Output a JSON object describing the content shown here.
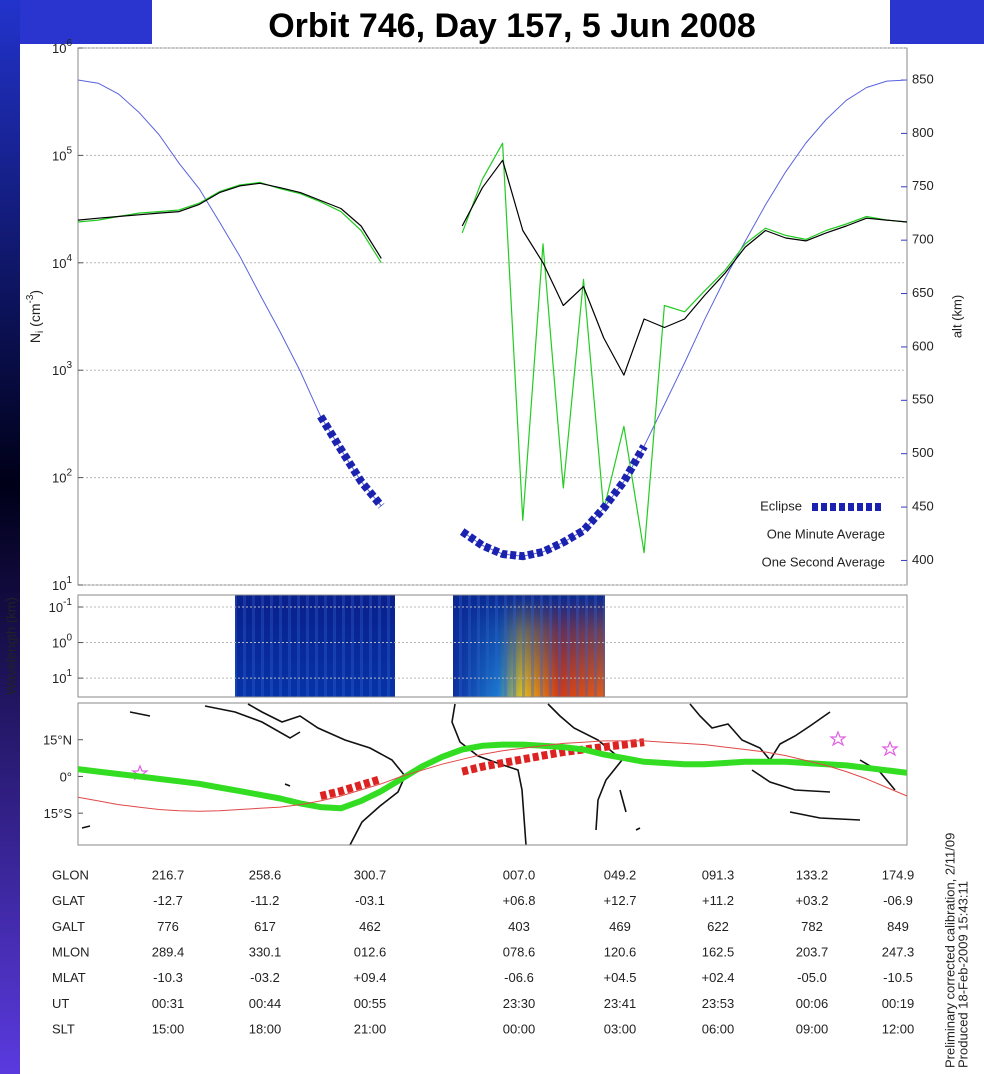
{
  "title": "Orbit 746,  Day 157,  5 Jun 2008",
  "chart_data": [
    {
      "type": "line",
      "ylabel": [
        "N",
        "i",
        " (cm",
        "-3",
        ")"
      ],
      "y2label": "alt (km)",
      "log_y": true,
      "grid": true,
      "legend": "lower right",
      "categories": [
        null,
        null,
        null,
        null,
        null,
        null,
        null,
        null,
        null,
        null,
        null,
        null,
        null,
        null,
        null,
        null,
        null,
        null,
        null,
        null,
        null,
        null,
        null,
        null,
        null,
        null,
        null,
        null,
        null,
        null,
        null,
        null,
        null,
        null,
        null,
        null,
        null,
        null,
        null,
        null,
        null,
        null
      ],
      "ylim": [
        10,
        1000000
      ],
      "yticks": [
        {
          "value": 10,
          "label": "10",
          "exponent": "1"
        },
        {
          "value": 100,
          "label": "10",
          "exponent": "2"
        },
        {
          "value": 1000,
          "label": "10",
          "exponent": "3"
        },
        {
          "value": 10000,
          "label": "10",
          "exponent": "4"
        },
        {
          "value": 100000,
          "label": "10",
          "exponent": "5"
        },
        {
          "value": 1000000,
          "label": "10",
          "exponent": "6"
        }
      ],
      "y2lim": [
        377,
        880
      ],
      "y2ticks": [
        400,
        450,
        500,
        550,
        600,
        650,
        700,
        750,
        800,
        850
      ],
      "series": [
        {
          "name": "Eclipse",
          "color": "#1b22b0",
          "style": "squares",
          "axis": "y2",
          "values": [
            null,
            null,
            null,
            null,
            null,
            null,
            null,
            null,
            null,
            null,
            null,
            null,
            535,
            504,
            474,
            451,
            null,
            null,
            null,
            427,
            414,
            406,
            404,
            408,
            417,
            428,
            449,
            474,
            507,
            null,
            null,
            null,
            null,
            null,
            null,
            null,
            null,
            null,
            null,
            null,
            null,
            null
          ]
        },
        {
          "name": "One Minute Average",
          "color": "#000000",
          "style": "line",
          "values": [
            25000,
            26000,
            27000,
            28000,
            29000,
            30000,
            35000,
            45000,
            52000,
            55000,
            50000,
            45000,
            38000,
            32000,
            22000,
            11000,
            null,
            null,
            null,
            22000,
            50000,
            90000,
            20000,
            10000,
            4000,
            6000,
            2000,
            900,
            3000,
            2500,
            3000,
            5000,
            8000,
            14000,
            20000,
            17000,
            16000,
            19000,
            22000,
            26000,
            25000,
            24000
          ]
        },
        {
          "name": "One Second Average",
          "color": "#22cc22",
          "style": "line",
          "values": [
            24000,
            25000,
            27000,
            29000,
            30000,
            31000,
            36000,
            46000,
            53000,
            56000,
            49000,
            44000,
            37000,
            30000,
            20000,
            10000,
            null,
            null,
            null,
            19000,
            60000,
            130000,
            40,
            15000,
            80,
            7000,
            50,
            300,
            20,
            4000,
            3500,
            5500,
            8500,
            15000,
            21000,
            18000,
            16500,
            20000,
            23000,
            27000,
            25000,
            24000
          ]
        },
        {
          "color": "#5a62dc",
          "style": "thin",
          "axis": "y2",
          "values": [
            850,
            847,
            837,
            820,
            799,
            772,
            748,
            717,
            685,
            649,
            614,
            577,
            535,
            504,
            474,
            451,
            null,
            null,
            null,
            427,
            414,
            406,
            404,
            408,
            417,
            428,
            449,
            474,
            507,
            546,
            585,
            626,
            664,
            699,
            733,
            764,
            791,
            813,
            831,
            843,
            849,
            850
          ]
        }
      ]
    },
    {
      "type": "spectrogram",
      "ylabel": "Wavelength (km)",
      "log_y": true,
      "y_reversed": true,
      "grid": true,
      "ylim": [
        0.046,
        34
      ],
      "yticks": [
        {
          "value": 0.1,
          "label": "10",
          "exponent": "-1"
        },
        {
          "value": 1,
          "label": "10",
          "exponent": "0"
        },
        {
          "value": 10,
          "label": "10",
          "exponent": "1"
        }
      ]
    },
    {
      "type": "line",
      "categories": [
        null,
        null,
        null,
        null,
        null,
        null,
        null,
        null,
        null,
        null,
        null,
        null,
        null,
        null,
        null,
        null,
        null,
        null,
        null,
        null,
        null,
        null,
        null,
        null,
        null,
        null,
        null,
        null,
        null,
        null,
        null,
        null,
        null,
        null,
        null,
        null,
        null,
        null,
        null,
        null,
        null,
        null
      ],
      "ylim": [
        -28,
        30
      ],
      "yticks": [
        {
          "value": 15,
          "label": "15°N"
        },
        {
          "value": 0,
          "label": "0°"
        },
        {
          "value": -15,
          "label": "15°S"
        }
      ],
      "series": [
        {
          "color": "#e04848",
          "style": "thin",
          "values": [
            -8.5,
            -10,
            -11.5,
            -12.5,
            -13.5,
            -14,
            -14.2,
            -14,
            -13.5,
            -13,
            -12.5,
            -11.5,
            -10,
            -8,
            -5.5,
            -3,
            0,
            2.5,
            5,
            7,
            9,
            10.5,
            11.5,
            12.5,
            13.5,
            14,
            14.5,
            14.5,
            14.5,
            14,
            13.5,
            13,
            12,
            11,
            10,
            8.5,
            6.5,
            4.5,
            2,
            -1,
            -4.5,
            -8
          ]
        },
        {
          "color": "#33dd22",
          "style": "thick",
          "values": [
            3,
            2,
            1,
            0,
            -1,
            -2,
            -3,
            -4.5,
            -6,
            -7.5,
            -9,
            -11,
            -12.5,
            -13,
            -10,
            -6,
            -1,
            4,
            8,
            11,
            12.5,
            13,
            13,
            12.5,
            12,
            11,
            9,
            7.5,
            6,
            5.5,
            5,
            5,
            5.5,
            6,
            6,
            6,
            5.5,
            5,
            4.5,
            3.5,
            2.5,
            1.5
          ]
        },
        {
          "color": "#dd2222",
          "style": "squares",
          "values": [
            null,
            null,
            null,
            null,
            null,
            null,
            null,
            null,
            null,
            null,
            null,
            null,
            -8,
            -6,
            -3.5,
            -1,
            null,
            null,
            null,
            2,
            4,
            5.5,
            7,
            8.5,
            10,
            11,
            12,
            13,
            14,
            null,
            null,
            null,
            null,
            null,
            null,
            null,
            null,
            null,
            null,
            null,
            null,
            null
          ]
        }
      ]
    }
  ],
  "table": {
    "rows": [
      {
        "label": "GLON",
        "values": [
          "216.7",
          "258.6",
          "300.7",
          "007.0",
          "049.2",
          "091.3",
          "133.2",
          "174.9"
        ]
      },
      {
        "label": "GLAT",
        "values": [
          "-12.7",
          "-11.2",
          "-03.1",
          "+06.8",
          "+12.7",
          "+11.2",
          "+03.2",
          "-06.9"
        ]
      },
      {
        "label": "GALT",
        "values": [
          "776",
          "617",
          "462",
          "403",
          "469",
          "622",
          "782",
          "849"
        ]
      },
      {
        "label": "MLON",
        "values": [
          "289.4",
          "330.1",
          "012.6",
          "078.6",
          "120.6",
          "162.5",
          "203.7",
          "247.3"
        ]
      },
      {
        "label": "MLAT",
        "values": [
          "-10.3",
          "-03.2",
          "+09.4",
          "-06.6",
          "+04.5",
          "+02.4",
          "-05.0",
          "-10.5"
        ]
      },
      {
        "label": "UT",
        "values": [
          "00:31",
          "00:44",
          "00:55",
          "23:30",
          "23:41",
          "23:53",
          "00:06",
          "00:19"
        ]
      },
      {
        "label": "SLT",
        "values": [
          "15:00",
          "18:00",
          "21:00",
          "00:00",
          "03:00",
          "06:00",
          "09:00",
          "12:00"
        ]
      }
    ]
  },
  "notes": [
    "Preliminary corrected calibration, 2/11/09",
    "Produced 18-Feb-2009 15:43:11"
  ]
}
